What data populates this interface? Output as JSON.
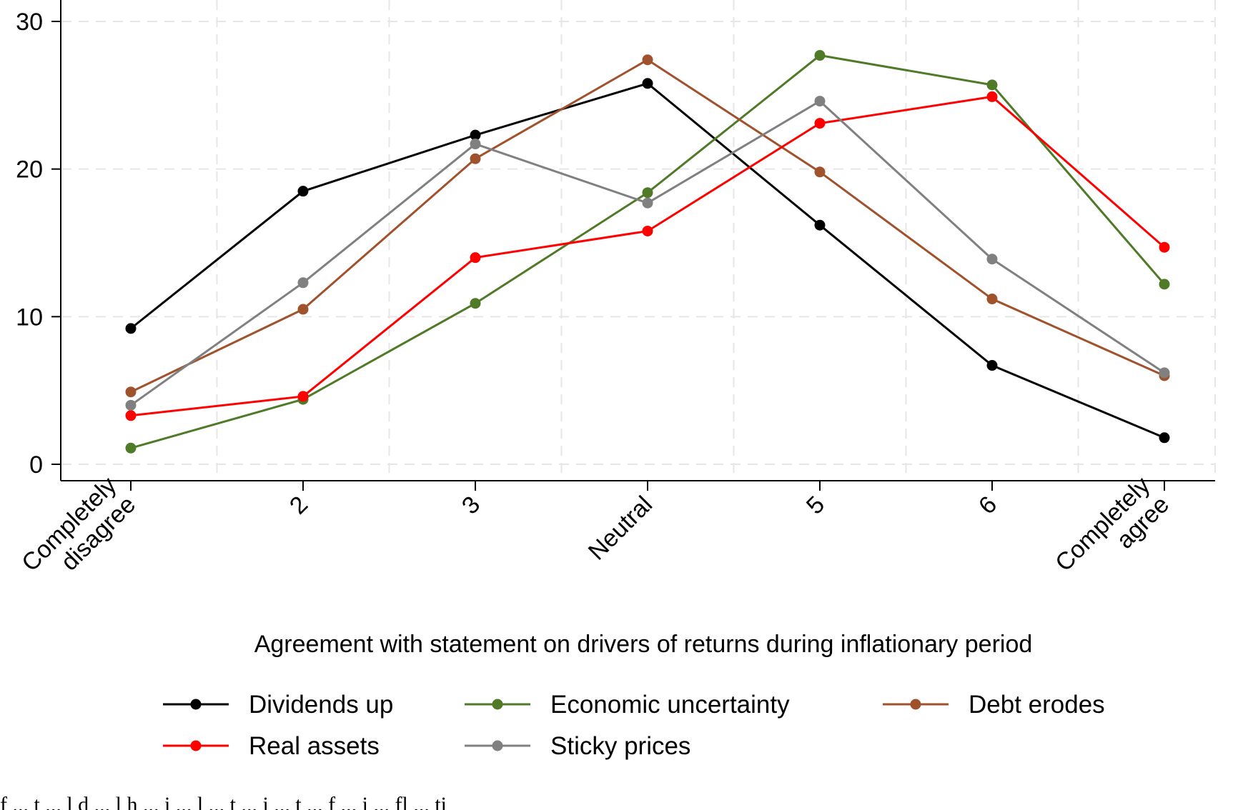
{
  "chart_data": {
    "type": "line",
    "xlabel": "Agreement with statement on drivers of returns during inflationary period",
    "ylabel": "",
    "categories": [
      [
        "Completely",
        "disagree"
      ],
      [
        "2"
      ],
      [
        "3"
      ],
      [
        "Neutral"
      ],
      [
        "5"
      ],
      [
        "6"
      ],
      [
        "Completely",
        "agree"
      ]
    ],
    "ylim": [
      0,
      30
    ],
    "yticks": [
      "0",
      "10",
      "20",
      "30"
    ],
    "ytick_values": [
      0,
      10,
      20,
      30
    ],
    "grid": true,
    "legend_position": "bottom",
    "series": [
      {
        "name": "Dividends up",
        "color": "#000000",
        "values": [
          9.2,
          18.5,
          22.3,
          25.8,
          16.2,
          6.7,
          1.8
        ]
      },
      {
        "name": "Economic uncertainty",
        "color": "#4f7a28",
        "values": [
          1.1,
          4.4,
          10.9,
          18.4,
          27.7,
          25.7,
          12.2
        ]
      },
      {
        "name": "Debt erodes",
        "color": "#a0522d",
        "values": [
          4.9,
          10.5,
          20.7,
          27.4,
          19.8,
          11.2,
          6.0
        ]
      },
      {
        "name": "Real assets",
        "color": "#ff0000",
        "values": [
          3.3,
          4.6,
          14.0,
          15.8,
          23.1,
          24.9,
          14.7
        ]
      },
      {
        "name": "Sticky prices",
        "color": "#808080",
        "values": [
          4.0,
          12.3,
          21.7,
          17.7,
          24.6,
          13.9,
          6.2
        ]
      }
    ]
  },
  "caption": "f ... t ... l d ... l h ... i ... l ... t ... i ... t ... f ... i ... fl ... ti"
}
